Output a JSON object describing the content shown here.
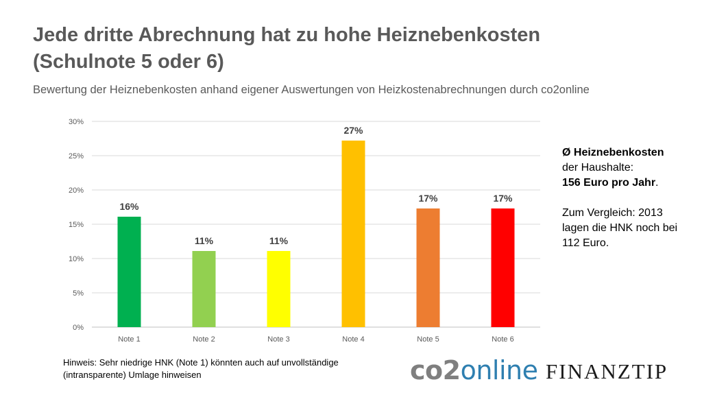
{
  "header": {
    "title_line1": "Jede dritte Abrechnung hat zu hohe Heiznebenkosten",
    "title_line2": "(Schulnote 5 oder 6)",
    "subtitle": "Bewertung der Heiznebenkosten anhand eigener Auswertungen von Heizkostenabrechnungen durch co2online"
  },
  "chart_data": {
    "type": "bar",
    "categories": [
      "Note 1",
      "Note 2",
      "Note 3",
      "Note 4",
      "Note 5",
      "Note 6"
    ],
    "values": [
      16,
      11,
      11,
      27,
      17,
      17
    ],
    "display_values": [
      16.1,
      11.1,
      11.1,
      27.2,
      17.3,
      17.3
    ],
    "data_labels": [
      "16%",
      "11%",
      "11%",
      "27%",
      "17%",
      "17%"
    ],
    "colors": [
      "#00b050",
      "#92d050",
      "#ffff00",
      "#ffc000",
      "#ed7d31",
      "#ff0000"
    ],
    "yticks": [
      "0%",
      "5%",
      "10%",
      "15%",
      "20%",
      "25%",
      "30%"
    ],
    "ylim": [
      0,
      30
    ],
    "grid": true,
    "title": "",
    "xlabel": "",
    "ylabel": ""
  },
  "side_info": {
    "line1": "Ø Heiznebenkosten",
    "line2": "der Haushalte:",
    "line3_bold": "156 Euro pro Jahr",
    "line3_rest": ".",
    "compare_line1": "Zum Vergleich: 2013",
    "compare_line2": "lagen die HNK noch bei",
    "compare_line3": "112 Euro."
  },
  "footer": {
    "note_line1": "Hinweis: Sehr niedrige HNK (Note 1) könnten auch auf unvollständige",
    "note_line2": "(intransparente) Umlage hinweisen",
    "logo1_part1": "co2",
    "logo1_part2": "online",
    "logo2": "FINANZTIP"
  }
}
